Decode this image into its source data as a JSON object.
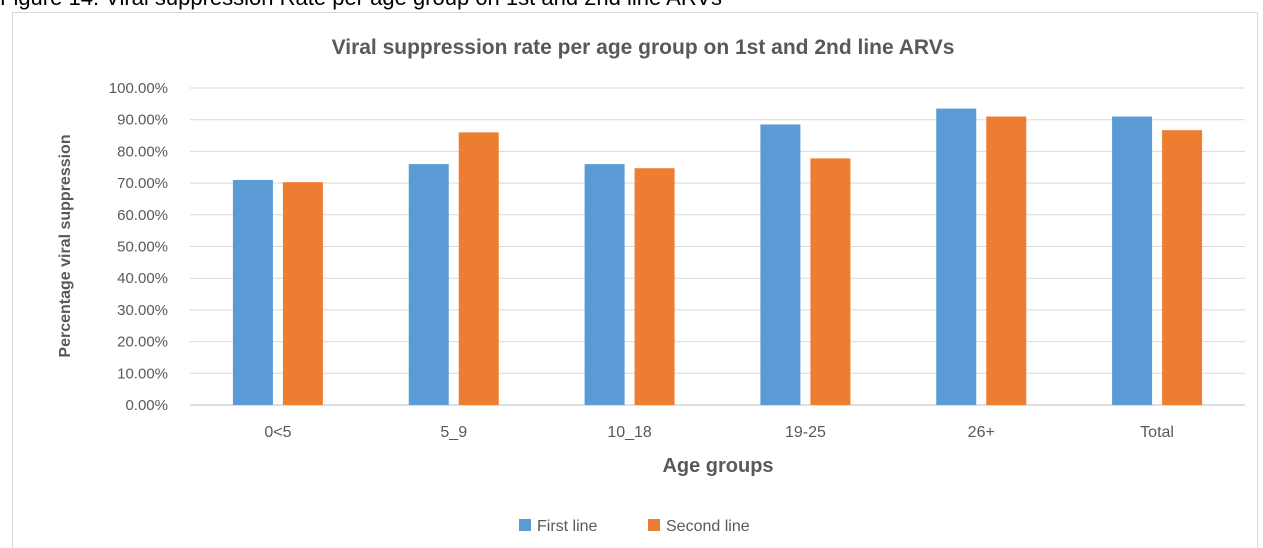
{
  "caption": "Figure 14: Viral suppression Rate per age group on 1st and 2nd line ARVs",
  "chart_data": {
    "type": "bar",
    "title": "Viral suppression rate per age group on 1st and 2nd line ARVs",
    "xlabel": "Age groups",
    "ylabel": "Percentage viral suppression",
    "categories": [
      "0<5",
      "5_9",
      "10_18",
      "19-25",
      "26+",
      "Total"
    ],
    "series": [
      {
        "name": "First line",
        "color": "#5b9bd5",
        "values": [
          71,
          76,
          76,
          88.5,
          93.5,
          91
        ]
      },
      {
        "name": "Second line",
        "color": "#ed7d31",
        "values": [
          70.3,
          86,
          74.7,
          77.8,
          91,
          86.7
        ]
      }
    ],
    "ylim": [
      0,
      100
    ],
    "yticks": [
      "0.00%",
      "10.00%",
      "20.00%",
      "30.00%",
      "40.00%",
      "50.00%",
      "60.00%",
      "70.00%",
      "80.00%",
      "90.00%",
      "100.00%"
    ],
    "grid": true,
    "legend": "bottom"
  }
}
